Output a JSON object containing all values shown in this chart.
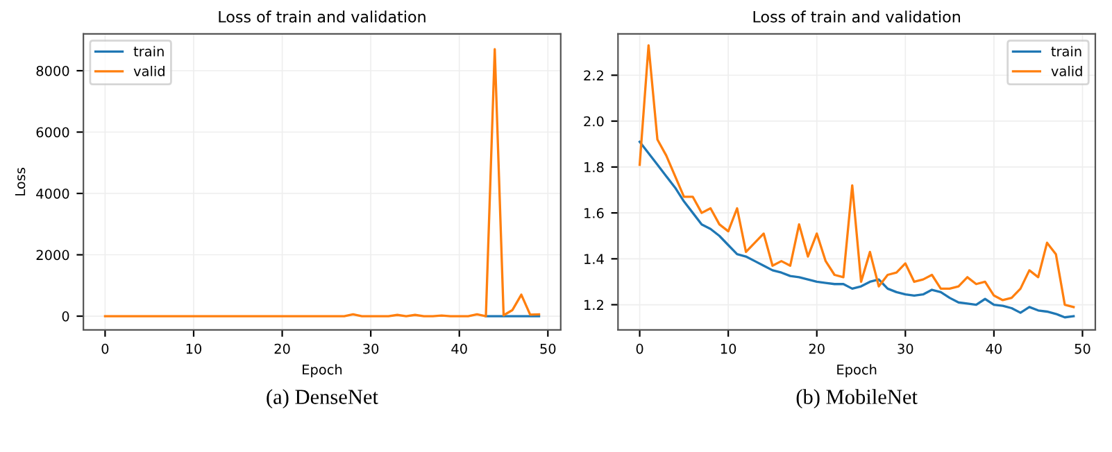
{
  "chart_data": [
    {
      "type": "line",
      "title": "Loss of train and validation",
      "xlabel": "Epoch",
      "ylabel": "Loss",
      "annotations": [
        "(a) DenseNet"
      ],
      "x": [
        0,
        1,
        2,
        3,
        4,
        5,
        6,
        7,
        8,
        9,
        10,
        11,
        12,
        13,
        14,
        15,
        16,
        17,
        18,
        19,
        20,
        21,
        22,
        23,
        24,
        25,
        26,
        27,
        28,
        29,
        30,
        31,
        32,
        33,
        34,
        35,
        36,
        37,
        38,
        39,
        40,
        41,
        42,
        43,
        44,
        45,
        46,
        47,
        48,
        49
      ],
      "series": [
        {
          "name": "train",
          "color": "#1f77b4",
          "values": [
            null,
            null,
            null,
            null,
            null,
            null,
            null,
            null,
            null,
            null,
            null,
            null,
            null,
            null,
            null,
            null,
            null,
            null,
            null,
            null,
            null,
            null,
            null,
            null,
            null,
            null,
            null,
            null,
            null,
            null,
            null,
            null,
            null,
            null,
            null,
            null,
            null,
            null,
            null,
            null,
            null,
            null,
            null,
            0,
            0,
            0,
            0,
            0,
            0,
            0
          ]
        },
        {
          "name": "valid",
          "color": "#ff7f0e",
          "values": [
            0,
            0,
            0,
            0,
            0,
            0,
            0,
            0,
            0,
            0,
            0,
            0,
            0,
            0,
            0,
            0,
            0,
            0,
            0,
            0,
            0,
            0,
            0,
            0,
            0,
            0,
            0,
            0,
            60,
            0,
            0,
            0,
            0,
            40,
            0,
            40,
            0,
            0,
            20,
            0,
            0,
            0,
            60,
            0,
            8700,
            30,
            200,
            700,
            50,
            60
          ]
        }
      ],
      "xlim": [
        -2.45,
        51.45
      ],
      "ylim": [
        -450,
        9200
      ],
      "xticks": [
        0,
        10,
        20,
        30,
        40,
        50
      ],
      "yticks": [
        0,
        2000,
        4000,
        6000,
        8000
      ],
      "grid": true,
      "legend": "top left"
    },
    {
      "type": "line",
      "title": "Loss of train and validation",
      "xlabel": "Epoch",
      "annotations": [
        "(b) MobileNet"
      ],
      "x": [
        0,
        1,
        2,
        3,
        4,
        5,
        6,
        7,
        8,
        9,
        10,
        11,
        12,
        13,
        14,
        15,
        16,
        17,
        18,
        19,
        20,
        21,
        22,
        23,
        24,
        25,
        26,
        27,
        28,
        29,
        30,
        31,
        32,
        33,
        34,
        35,
        36,
        37,
        38,
        39,
        40,
        41,
        42,
        43,
        44,
        45,
        46,
        47,
        48,
        49
      ],
      "series": [
        {
          "name": "train",
          "color": "#1f77b4",
          "values": [
            1.91,
            1.86,
            1.81,
            1.76,
            1.71,
            1.65,
            1.6,
            1.55,
            1.53,
            1.5,
            1.46,
            1.42,
            1.41,
            1.39,
            1.37,
            1.35,
            1.34,
            1.325,
            1.32,
            1.31,
            1.3,
            1.295,
            1.29,
            1.29,
            1.27,
            1.28,
            1.3,
            1.31,
            1.27,
            1.255,
            1.245,
            1.24,
            1.245,
            1.265,
            1.255,
            1.23,
            1.21,
            1.205,
            1.2,
            1.225,
            1.2,
            1.195,
            1.185,
            1.165,
            1.19,
            1.175,
            1.17,
            1.16,
            1.145,
            1.15
          ]
        },
        {
          "name": "valid",
          "color": "#ff7f0e",
          "values": [
            1.81,
            2.33,
            1.92,
            1.85,
            1.76,
            1.67,
            1.67,
            1.6,
            1.62,
            1.55,
            1.52,
            1.62,
            1.43,
            1.47,
            1.51,
            1.37,
            1.39,
            1.37,
            1.55,
            1.41,
            1.51,
            1.39,
            1.33,
            1.32,
            1.72,
            1.3,
            1.43,
            1.28,
            1.33,
            1.34,
            1.38,
            1.3,
            1.31,
            1.33,
            1.27,
            1.27,
            1.28,
            1.32,
            1.29,
            1.3,
            1.24,
            1.22,
            1.23,
            1.27,
            1.35,
            1.32,
            1.47,
            1.42,
            1.2,
            1.19
          ]
        }
      ],
      "xlim": [
        -2.45,
        51.45
      ],
      "ylim": [
        1.09,
        2.38
      ],
      "xticks": [
        0,
        10,
        20,
        30,
        40,
        50
      ],
      "yticks": [
        {
          "value": 1.2,
          "label": "1.2"
        },
        {
          "value": 1.4,
          "label": "1.4"
        },
        {
          "value": 1.6,
          "label": "1.6"
        },
        {
          "value": 1.8,
          "label": "1.8"
        },
        {
          "value": 2.0,
          "label": "2.0"
        },
        {
          "value": 2.2,
          "label": "2.2"
        }
      ],
      "grid": true,
      "legend": "top right"
    }
  ]
}
